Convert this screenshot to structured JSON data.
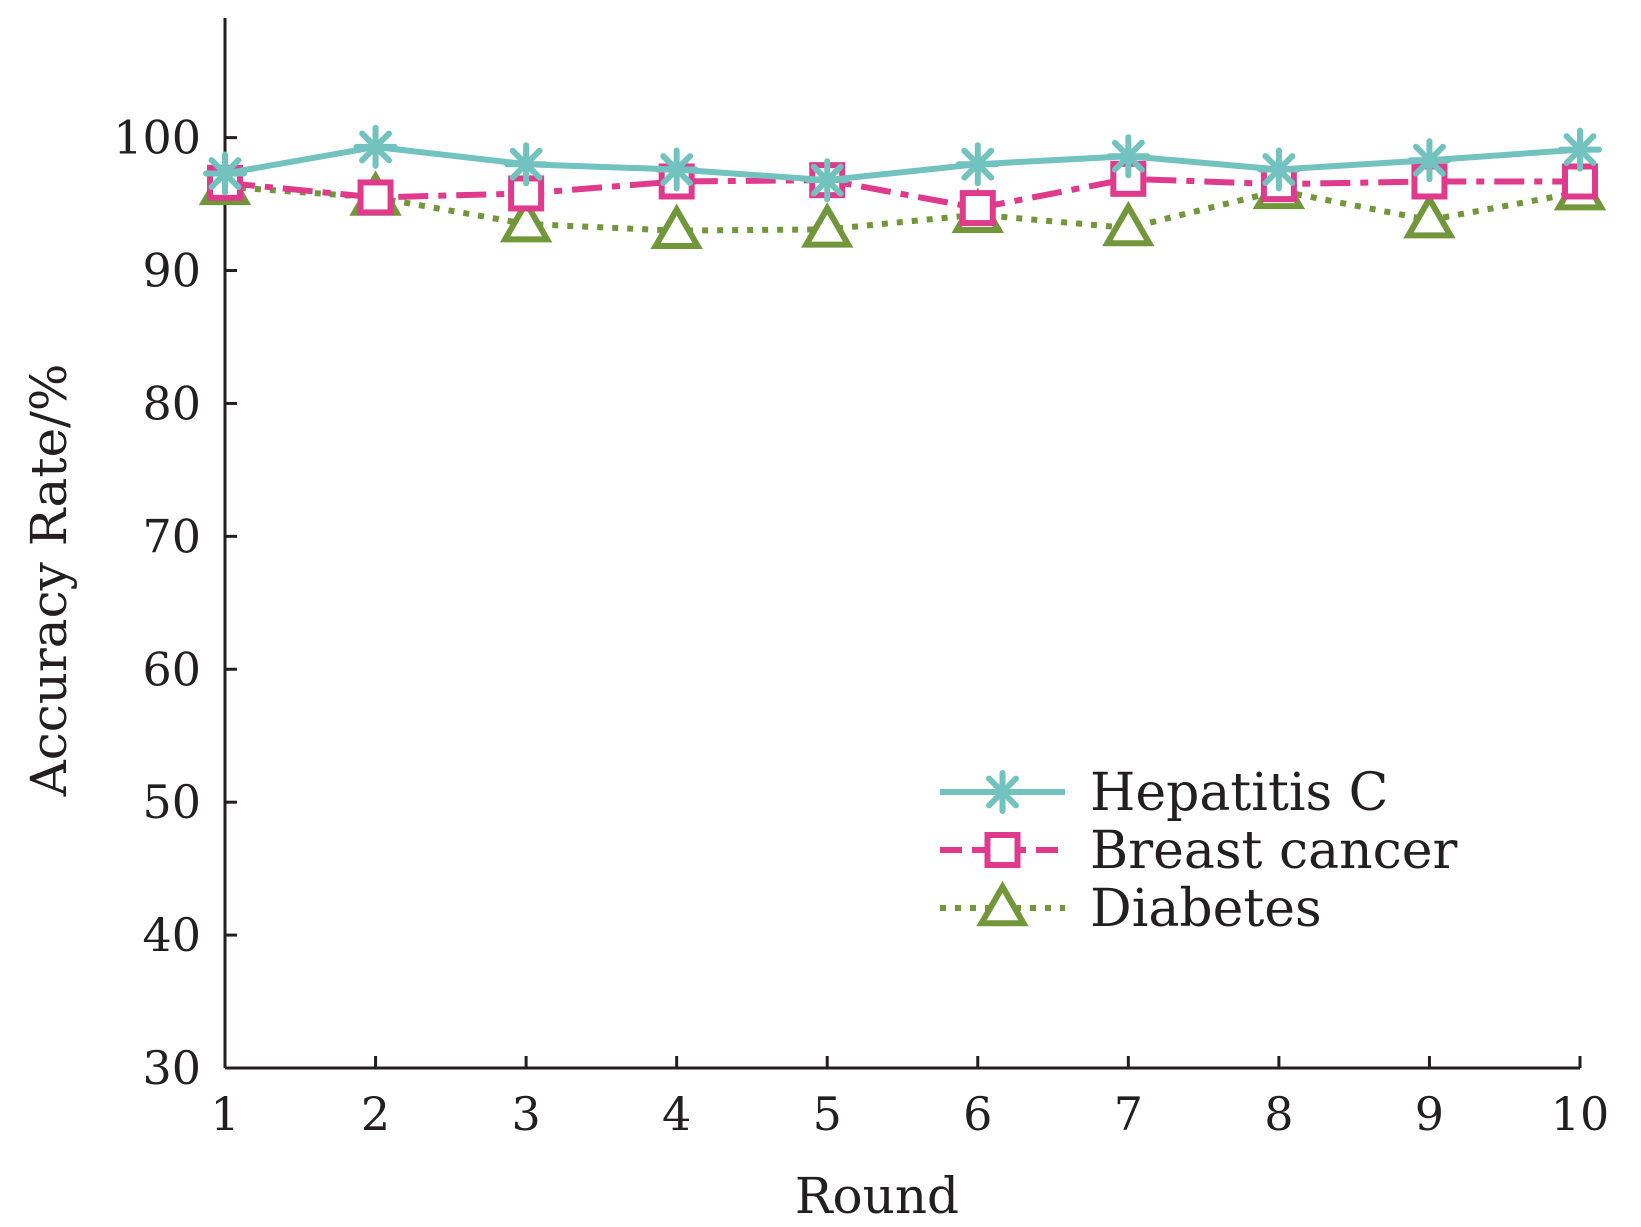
{
  "chart_data": {
    "type": "line",
    "xlabel": "Round",
    "ylabel": "Accuracy Rate/%",
    "x": [
      1,
      2,
      3,
      4,
      5,
      6,
      7,
      8,
      9,
      10
    ],
    "x_tick_labels": [
      "1",
      "2",
      "3",
      "4",
      "5",
      "6",
      "7",
      "8",
      "9",
      "10"
    ],
    "y_ticks": [
      30,
      40,
      50,
      60,
      70,
      80,
      90,
      100
    ],
    "y_tick_labels": [
      "30",
      "40",
      "50",
      "60",
      "70",
      "80",
      "90",
      "100"
    ],
    "xlim": [
      1,
      10
    ],
    "ylim": [
      30,
      109
    ],
    "grid": false,
    "legend_position": "lower-right",
    "series": [
      {
        "name": "Hepatitis C",
        "color": "#72c2c0",
        "line_style": "solid",
        "marker": "asterisk",
        "values": [
          97.3,
          99.3,
          98.0,
          97.6,
          96.8,
          98.0,
          98.6,
          97.6,
          98.3,
          99.1
        ]
      },
      {
        "name": "Breast cancer",
        "color": "#df3a8c",
        "line_style": "dashed",
        "marker": "square",
        "values": [
          96.6,
          95.5,
          95.8,
          96.7,
          96.8,
          94.7,
          96.9,
          96.5,
          96.7,
          96.7
        ]
      },
      {
        "name": "Diabetes",
        "color": "#72973a",
        "line_style": "dotted",
        "marker": "triangle",
        "values": [
          96.3,
          95.5,
          93.5,
          93.0,
          93.1,
          94.2,
          93.2,
          96.0,
          93.8,
          95.9
        ]
      }
    ]
  }
}
